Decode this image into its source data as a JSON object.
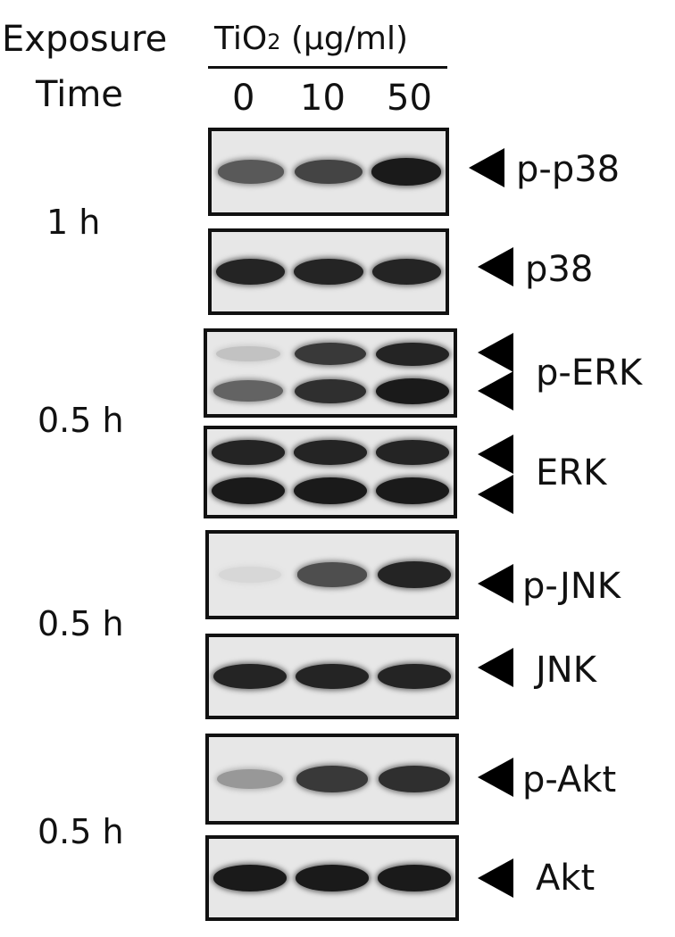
{
  "header": {
    "exposure_label": "Exposure",
    "time_label": "Time",
    "treatment_label": "TiO",
    "treatment_sub": "2",
    "treatment_unit": " (µg/ml)",
    "lanes": [
      "0",
      "10",
      "50"
    ]
  },
  "time_groups": [
    {
      "label": "1 h"
    },
    {
      "label": "0.5 h"
    },
    {
      "label": "0.5 h"
    },
    {
      "label": "0.5 h"
    }
  ],
  "blots": [
    {
      "label": "p-p38",
      "band_intensity": [
        0.65,
        0.75,
        0.95
      ]
    },
    {
      "label": "p38",
      "band_intensity": [
        0.9,
        0.9,
        0.9
      ]
    },
    {
      "label": "p-ERK",
      "band_intensity_upper": [
        0.15,
        0.8,
        0.9
      ],
      "band_intensity_lower": [
        0.6,
        0.85,
        0.95
      ]
    },
    {
      "label": "ERK",
      "band_intensity_upper": [
        0.9,
        0.9,
        0.9
      ],
      "band_intensity_lower": [
        0.95,
        0.95,
        0.95
      ]
    },
    {
      "label": "p-JNK",
      "band_intensity": [
        0.05,
        0.7,
        0.9
      ]
    },
    {
      "label": "JNK",
      "band_intensity": [
        0.9,
        0.9,
        0.9
      ]
    },
    {
      "label": "p-Akt",
      "band_intensity": [
        0.35,
        0.8,
        0.85
      ]
    },
    {
      "label": "Akt",
      "band_intensity": [
        0.95,
        0.95,
        0.95
      ]
    }
  ]
}
